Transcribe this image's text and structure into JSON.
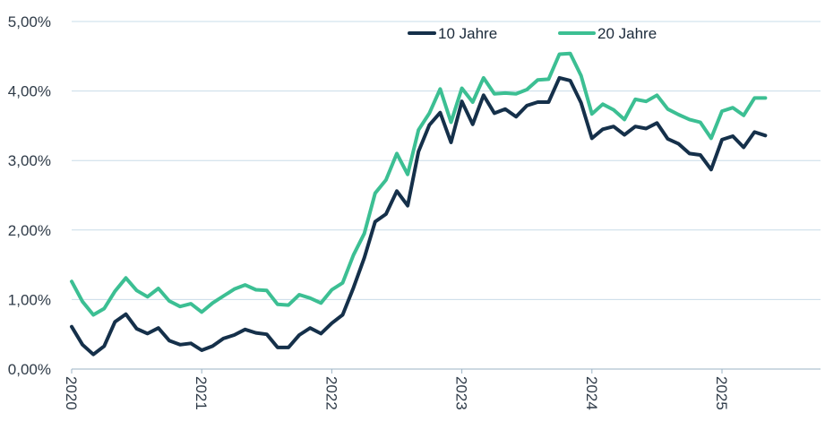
{
  "chart_data": {
    "type": "line",
    "title": "",
    "xlabel": "",
    "ylabel": "",
    "ylim": [
      0,
      5
    ],
    "yticks": [
      "0,00%",
      "1,00%",
      "2,00%",
      "3,00%",
      "4,00%",
      "5,00%"
    ],
    "xticks": [
      "2020",
      "2021",
      "2022",
      "2023",
      "2024",
      "2025"
    ],
    "x_start": "2020-01",
    "x_step": "1 month",
    "grid": "horizontal",
    "legend": "top",
    "series": [
      {
        "name": "10 Jahre",
        "color": "#15304a",
        "values": [
          0.61,
          0.35,
          0.21,
          0.33,
          0.68,
          0.79,
          0.58,
          0.51,
          0.59,
          0.41,
          0.35,
          0.37,
          0.27,
          0.33,
          0.44,
          0.49,
          0.57,
          0.52,
          0.5,
          0.31,
          0.31,
          0.49,
          0.59,
          0.51,
          0.66,
          0.78,
          1.17,
          1.6,
          2.12,
          2.23,
          2.56,
          2.35,
          3.13,
          3.51,
          3.69,
          3.26,
          3.85,
          3.52,
          3.94,
          3.68,
          3.74,
          3.63,
          3.79,
          3.84,
          3.84,
          4.19,
          4.15,
          3.83,
          3.32,
          3.45,
          3.49,
          3.37,
          3.49,
          3.46,
          3.54,
          3.31,
          3.24,
          3.1,
          3.08,
          2.87,
          3.3,
          3.35,
          3.19,
          3.41,
          3.36
        ]
      },
      {
        "name": "20 Jahre",
        "color": "#3cbf93",
        "values": [
          1.26,
          0.97,
          0.78,
          0.87,
          1.12,
          1.31,
          1.13,
          1.04,
          1.16,
          0.98,
          0.9,
          0.94,
          0.82,
          0.95,
          1.05,
          1.15,
          1.21,
          1.14,
          1.13,
          0.93,
          0.92,
          1.07,
          1.02,
          0.95,
          1.14,
          1.24,
          1.64,
          1.95,
          2.53,
          2.72,
          3.1,
          2.8,
          3.44,
          3.68,
          4.03,
          3.55,
          4.04,
          3.84,
          4.19,
          3.96,
          3.97,
          3.96,
          4.02,
          4.16,
          4.17,
          4.53,
          4.54,
          4.22,
          3.67,
          3.81,
          3.73,
          3.59,
          3.88,
          3.85,
          3.94,
          3.74,
          3.66,
          3.59,
          3.55,
          3.32,
          3.71,
          3.76,
          3.65,
          3.9,
          3.9
        ]
      }
    ]
  }
}
